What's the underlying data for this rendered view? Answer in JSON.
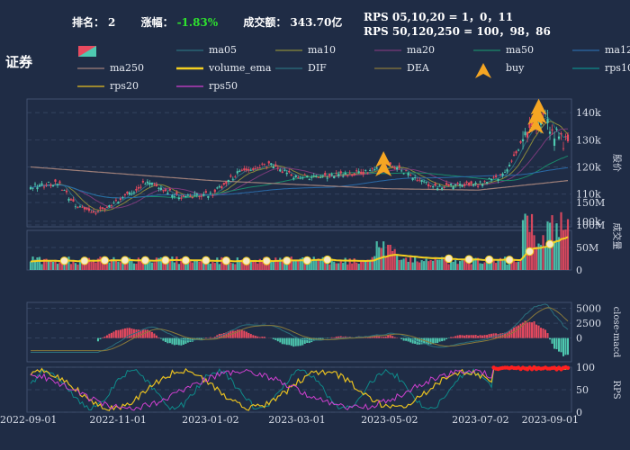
{
  "header": {
    "rank_label": "排名：",
    "rank_value": "2",
    "change_label": "涨幅：",
    "change_value": "-1.83%",
    "turnover_label": "成交额：",
    "turnover_value": "343.70亿",
    "rps_line1": "RPS 05,10,20 = 1，0，11",
    "rps_line2": "RPS 50,120,250 = 100，98，86",
    "section_title": "证券"
  },
  "legend": [
    {
      "label": "",
      "color": "#e84a5f",
      "kind": "candle"
    },
    {
      "label": "ma05",
      "color": "#2a6f7d",
      "kind": "line"
    },
    {
      "label": "ma10",
      "color": "#8a8a3a",
      "kind": "line"
    },
    {
      "label": "ma20",
      "color": "#7a3a7a",
      "kind": "line"
    },
    {
      "label": "ma50",
      "color": "#1a8a6a",
      "kind": "line"
    },
    {
      "label": "ma120",
      "color": "#2a6aa8",
      "kind": "line"
    },
    {
      "label": "ma250",
      "color": "#a0807a",
      "kind": "line"
    },
    {
      "label": "volume_ema",
      "color": "#f5d020",
      "kind": "thick"
    },
    {
      "label": "DIF",
      "color": "#2a6f7d",
      "kind": "line"
    },
    {
      "label": "DEA",
      "color": "#8a7a3a",
      "kind": "line"
    },
    {
      "label": "buy",
      "color": "#f5a623",
      "kind": "triangle"
    },
    {
      "label": "rps10",
      "color": "#0e8a8a",
      "kind": "line"
    },
    {
      "label": "rps20",
      "color": "#e8c020",
      "kind": "line"
    },
    {
      "label": "rps50",
      "color": "#d040d0",
      "kind": "line"
    }
  ],
  "colors": {
    "up": "#4ec9b0",
    "down": "#e84a5f",
    "grid": "#3a4a68",
    "axis_text": "#d8dde8",
    "volume_ema": "#f5d020",
    "buy": "#f5a623",
    "rps_highlight": "#ff2020"
  },
  "chart_data": {
    "type": "candlestick",
    "x_ticks": [
      "2022-09-01",
      "2022-11-01",
      "2023-01-02",
      "2023-03-01",
      "2023-05-02",
      "2023-07-02",
      "2023-09-01"
    ],
    "panels": {
      "price": {
        "ylabel": "股价",
        "ticks": [
          "100k",
          "110k",
          "120k",
          "130k",
          "140k"
        ],
        "tick_values": [
          100000,
          110000,
          120000,
          130000,
          140000
        ],
        "ylim": [
          98000,
          145000
        ]
      },
      "volume": {
        "ylabel": "成交量",
        "ticks": [
          "0",
          "50M",
          "100M",
          "150M"
        ],
        "tick_values": [
          0,
          50000000,
          100000000,
          150000000
        ],
        "ylim": [
          0,
          150000000
        ]
      },
      "macd": {
        "ylabel": "close-macd",
        "ticks": [
          "0",
          "2500",
          "5000"
        ],
        "tick_values": [
          0,
          2500,
          5000
        ],
        "ylim": [
          -4000,
          6000
        ]
      },
      "rps": {
        "ylabel": "RPS",
        "ticks": [
          "0",
          "50",
          "100"
        ],
        "tick_values": [
          0,
          50,
          100
        ],
        "ylim": [
          0,
          100
        ]
      }
    },
    "price_keypoints": [
      {
        "date": "2022-09-01",
        "close": 113000
      },
      {
        "date": "2022-09-20",
        "close": 114000
      },
      {
        "date": "2022-10-01",
        "close": 106000
      },
      {
        "date": "2022-10-15",
        "close": 103000
      },
      {
        "date": "2022-11-01",
        "close": 108000
      },
      {
        "date": "2022-11-20",
        "close": 115000
      },
      {
        "date": "2022-12-10",
        "close": 109000
      },
      {
        "date": "2023-01-02",
        "close": 110000
      },
      {
        "date": "2023-01-20",
        "close": 118000
      },
      {
        "date": "2023-02-10",
        "close": 121000
      },
      {
        "date": "2023-03-01",
        "close": 116000
      },
      {
        "date": "2023-04-01",
        "close": 117000
      },
      {
        "date": "2023-04-25",
        "close": 119000
      },
      {
        "date": "2023-05-02",
        "close": 121000
      },
      {
        "date": "2023-06-01",
        "close": 113000
      },
      {
        "date": "2023-07-02",
        "close": 113500
      },
      {
        "date": "2023-07-20",
        "close": 117000
      },
      {
        "date": "2023-08-05",
        "close": 134000
      },
      {
        "date": "2023-08-15",
        "close": 139000
      },
      {
        "date": "2023-08-25",
        "close": 131000
      },
      {
        "date": "2023-09-01",
        "close": 128000
      }
    ],
    "ma250_keypoints": [
      {
        "date": "2022-09-01",
        "close": 120000
      },
      {
        "date": "2023-01-02",
        "close": 115000
      },
      {
        "date": "2023-05-02",
        "close": 112000
      },
      {
        "date": "2023-07-02",
        "close": 111500
      },
      {
        "date": "2023-09-01",
        "close": 115000
      }
    ],
    "buy_signals": [
      "2023-04-28",
      "2023-08-08",
      "2023-08-10"
    ]
  }
}
